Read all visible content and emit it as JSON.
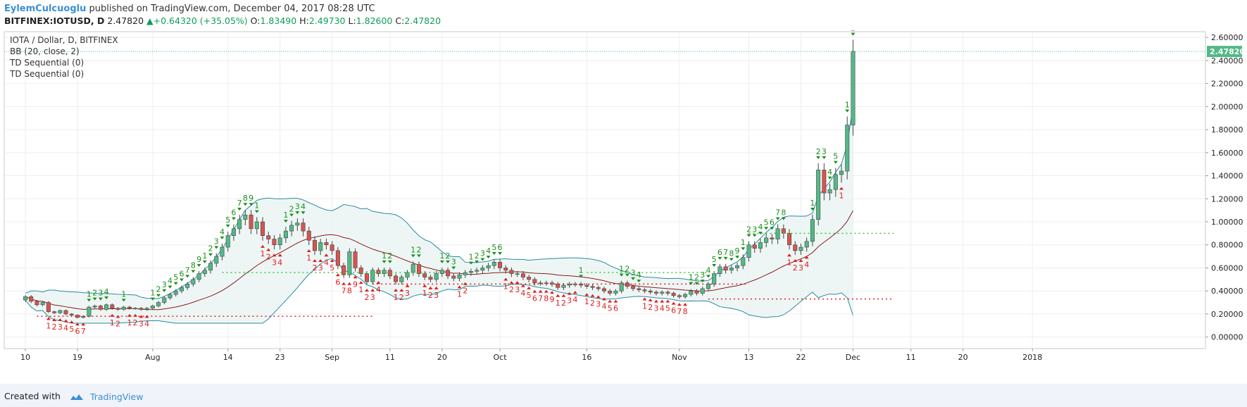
{
  "header": {
    "author": "EylemCulcuoglu",
    "published_text": "published on TradingView.com, December 04, 2017 08:28 UTC",
    "symbol": "BITFINEX:IOTUSD, D",
    "last": "2.47820",
    "change": "+0.64320 (+35.05%)",
    "o_label": "O:",
    "o": "1.83490",
    "h_label": "H:",
    "h": "2.49730",
    "l_label": "L:",
    "l": "1.82600",
    "c_label": "C:",
    "c": "2.47820",
    "up_arrow": "▲"
  },
  "legend": {
    "title": "IOTA / Dollar, D, BITFINEX",
    "bb": "BB (20, close, 2)",
    "td1": "TD Sequential (0)",
    "td2": "TD Sequential (0)"
  },
  "footer": {
    "created_with": "Created with",
    "brand": "TradingView"
  },
  "colors": {
    "up": "#53b987",
    "down": "#d9534f",
    "basis": "#8b1a1a",
    "band": "#2b8a9f",
    "band_fill": "#e8f4f3",
    "td_green": "#1a8f1a",
    "td_red": "#e01e1e",
    "price_tag": "#53b987"
  },
  "chart_data": {
    "type": "candlestick",
    "title": "IOTA / Dollar, D, BITFINEX",
    "y_ticks": [
      "0.00000",
      "0.20000",
      "0.40000",
      "0.60000",
      "0.80000",
      "1.00000",
      "1.20000",
      "1.40000",
      "1.60000",
      "1.80000",
      "2.00000",
      "2.20000",
      "2.40000",
      "2.60000"
    ],
    "ylim": [
      -0.1,
      2.65
    ],
    "x_labels": [
      {
        "label": "10",
        "day": 0
      },
      {
        "label": "19",
        "day": 9
      },
      {
        "label": "Aug",
        "day": 22
      },
      {
        "label": "14",
        "day": 35
      },
      {
        "label": "23",
        "day": 44
      },
      {
        "label": "Sep",
        "day": 53
      },
      {
        "label": "11",
        "day": 63
      },
      {
        "label": "20",
        "day": 72
      },
      {
        "label": "Oct",
        "day": 82
      },
      {
        "label": "16",
        "day": 97
      },
      {
        "label": "Nov",
        "day": 113
      },
      {
        "label": "13",
        "day": 125
      },
      {
        "label": "22",
        "day": 134
      },
      {
        "label": "Dec",
        "day": 143
      },
      {
        "label": "11",
        "day": 153
      },
      {
        "label": "20",
        "day": 162
      },
      {
        "label": "2018",
        "day": 174
      }
    ],
    "last_price": "2.47820",
    "closes": [
      0.35,
      0.31,
      0.28,
      0.3,
      0.22,
      0.21,
      0.23,
      0.2,
      0.19,
      0.17,
      0.18,
      0.26,
      0.27,
      0.24,
      0.28,
      0.25,
      0.24,
      0.26,
      0.25,
      0.25,
      0.24,
      0.25,
      0.27,
      0.3,
      0.34,
      0.37,
      0.4,
      0.43,
      0.46,
      0.5,
      0.55,
      0.58,
      0.64,
      0.7,
      0.78,
      0.88,
      0.94,
      1.02,
      1.06,
      0.94,
      1.0,
      0.88,
      0.85,
      0.8,
      0.86,
      0.92,
      0.97,
      0.99,
      0.92,
      0.84,
      0.75,
      0.82,
      0.8,
      0.75,
      0.62,
      0.54,
      0.74,
      0.6,
      0.55,
      0.48,
      0.58,
      0.55,
      0.58,
      0.53,
      0.48,
      0.52,
      0.56,
      0.63,
      0.55,
      0.52,
      0.5,
      0.55,
      0.58,
      0.53,
      0.51,
      0.54,
      0.56,
      0.57,
      0.58,
      0.6,
      0.62,
      0.65,
      0.6,
      0.58,
      0.55,
      0.55,
      0.52,
      0.5,
      0.47,
      0.47,
      0.47,
      0.46,
      0.43,
      0.45,
      0.46,
      0.46,
      0.45,
      0.44,
      0.43,
      0.42,
      0.4,
      0.38,
      0.4,
      0.47,
      0.44,
      0.42,
      0.41,
      0.4,
      0.39,
      0.38,
      0.39,
      0.38,
      0.36,
      0.35,
      0.37,
      0.4,
      0.38,
      0.42,
      0.46,
      0.55,
      0.61,
      0.58,
      0.6,
      0.62,
      0.69,
      0.8,
      0.77,
      0.82,
      0.86,
      0.85,
      0.94,
      0.9,
      0.8,
      0.75,
      0.78,
      0.83,
      1.02,
      1.45,
      1.25,
      1.28,
      1.41,
      1.44,
      1.84,
      2.48
    ],
    "bands_note": "Bollinger Bands (20, close, 2) with TD Sequential counts"
  }
}
